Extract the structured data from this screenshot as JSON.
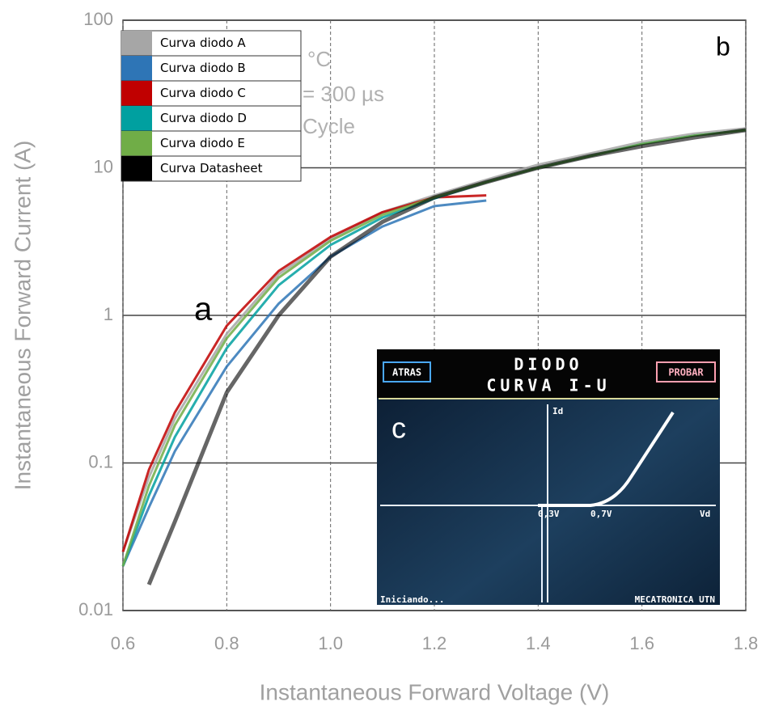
{
  "chart_data": {
    "type": "line",
    "x_label": "Instantaneous Forward Voltage (V)",
    "y_label": "Instantaneous Forward Current (A)",
    "x": [
      0.6,
      0.65,
      0.7,
      0.8,
      0.9,
      1.0,
      1.1,
      1.2,
      1.3,
      1.4,
      1.5,
      1.6,
      1.7,
      1.8
    ],
    "series": [
      {
        "name": "Curva diodo A",
        "color": "#a6a6a6",
        "values": [
          0.025,
          0.08,
          0.2,
          0.75,
          1.9,
          3.3,
          5,
          6.5,
          8.3,
          10.5,
          12.5,
          15,
          17,
          18.5
        ]
      },
      {
        "name": "Curva diodo B",
        "color": "#2e75b6",
        "values": [
          0.02,
          0.05,
          0.12,
          0.45,
          1.2,
          2.5,
          4,
          5.5,
          6,
          null,
          null,
          null,
          null,
          null
        ]
      },
      {
        "name": "Curva diodo C",
        "color": "#c00000",
        "values": [
          0.025,
          0.09,
          0.22,
          0.85,
          2,
          3.4,
          5,
          6.3,
          6.5,
          null,
          null,
          null,
          null,
          null
        ]
      },
      {
        "name": "Curva diodo D",
        "color": "#00a0a0",
        "values": [
          0.02,
          0.06,
          0.15,
          0.6,
          1.6,
          3,
          4.6,
          6.2,
          8,
          10,
          12,
          14.5,
          16.5,
          18
        ]
      },
      {
        "name": "Curva diodo E",
        "color": "#70ad47",
        "values": [
          0.02,
          0.07,
          0.18,
          0.7,
          1.8,
          3.2,
          4.8,
          6.3,
          8,
          10,
          12,
          14.5,
          16.5,
          18
        ]
      },
      {
        "name": "Curva Datasheet",
        "color": "#000000",
        "values": [
          null,
          0.015,
          0.04,
          0.3,
          1,
          2.5,
          4.3,
          6.3,
          8,
          10,
          12,
          14,
          16,
          18
        ]
      }
    ],
    "xlim": [
      0.6,
      1.8
    ],
    "xticks": [
      0.6,
      0.8,
      {
        "value": 1,
        "label": "1.0"
      },
      1.2,
      1.4,
      1.6,
      1.8
    ],
    "ylim": [
      0.01,
      100
    ],
    "yticks": [
      0.01,
      0.1,
      1,
      10,
      100
    ],
    "log_y": true,
    "grid": true,
    "legend": "upper left",
    "annotations": [
      "a",
      "b",
      "°C",
      "= 300 µs",
      "Cycle"
    ],
    "inset": {
      "label": "c",
      "title": "DIODO",
      "subtitle": "CURVA I-U",
      "buttons": [
        "ATRAS",
        "PROBAR"
      ],
      "y_axis": "Id",
      "x_axis": "Vd",
      "marks": [
        "0,3V",
        "0,7V"
      ],
      "status": "Iniciando...",
      "footer": "MECATRONICA UTN"
    }
  }
}
